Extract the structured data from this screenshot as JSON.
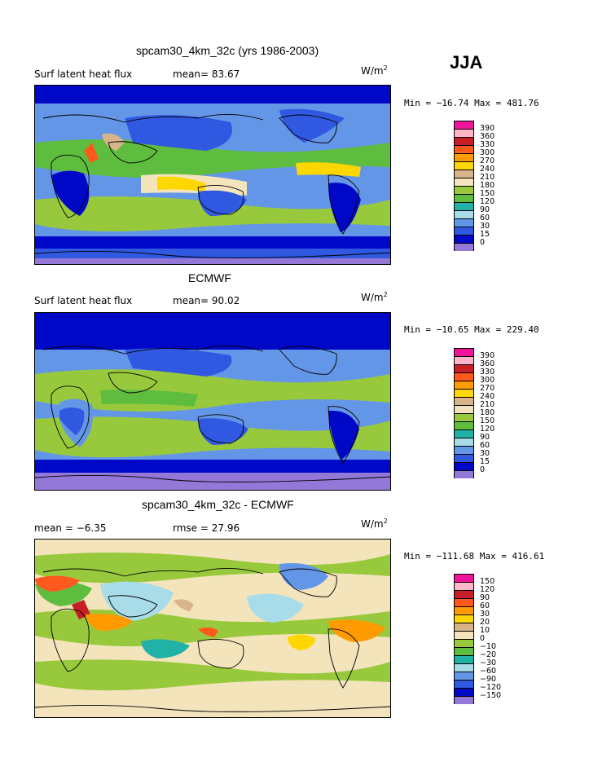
{
  "season": "JJA",
  "panels": [
    {
      "title": "spcam30_4km_32c (yrs 1986-2003)",
      "left_label": "Surf latent heat flux",
      "stat1": "mean=  83.67",
      "stat2": "",
      "units_base": "W/m",
      "units_exp": "2",
      "minmax": "Min = −16.74 Max = 481.76",
      "legend_labels": [
        "390",
        "360",
        "330",
        "300",
        "270",
        "240",
        "210",
        "180",
        "150",
        "120",
        "90",
        "60",
        "30",
        "15",
        "0"
      ],
      "legend_colors": [
        "#f0149a",
        "#ffb6c8",
        "#c62026",
        "#ff5a1e",
        "#ff9a00",
        "#ffd700",
        "#d8b48a",
        "#f4e4bc",
        "#98c93c",
        "#5ebd3e",
        "#21b2a7",
        "#a8dce8",
        "#6496e8",
        "#3058e0",
        "#0008c8",
        "#9378d8"
      ]
    },
    {
      "title": "ECMWF",
      "left_label": "Surf latent heat flux",
      "stat1": "mean=  90.02",
      "stat2": "",
      "units_base": "W/m",
      "units_exp": "2",
      "minmax": "Min = −10.65 Max = 229.40",
      "legend_labels": [
        "390",
        "360",
        "330",
        "300",
        "270",
        "240",
        "210",
        "180",
        "150",
        "120",
        "90",
        "60",
        "30",
        "15",
        "0"
      ],
      "legend_colors": [
        "#f0149a",
        "#ffb6c8",
        "#c62026",
        "#ff5a1e",
        "#ff9a00",
        "#ffd700",
        "#d8b48a",
        "#f4e4bc",
        "#98c93c",
        "#5ebd3e",
        "#21b2a7",
        "#a8dce8",
        "#6496e8",
        "#3058e0",
        "#0008c8",
        "#9378d8"
      ]
    },
    {
      "title": "spcam30_4km_32c - ECMWF",
      "left_label": "mean =   −6.35",
      "stat1": "rmse =   27.96",
      "stat2": "",
      "units_base": "W/m",
      "units_exp": "2",
      "minmax": "Min = −111.68 Max = 416.61",
      "legend_labels": [
        "150",
        "120",
        "90",
        "60",
        "30",
        "20",
        "10",
        "0",
        "−10",
        "−20",
        "−30",
        "−60",
        "−90",
        "−120",
        "−150"
      ],
      "legend_colors": [
        "#f0149a",
        "#ffb6c8",
        "#c62026",
        "#ff5a1e",
        "#ff9a00",
        "#ffd700",
        "#d8b48a",
        "#f4e4bc",
        "#98c93c",
        "#5ebd3e",
        "#21b2a7",
        "#a8dce8",
        "#6496e8",
        "#3058e0",
        "#0008c8",
        "#9378d8"
      ]
    }
  ]
}
